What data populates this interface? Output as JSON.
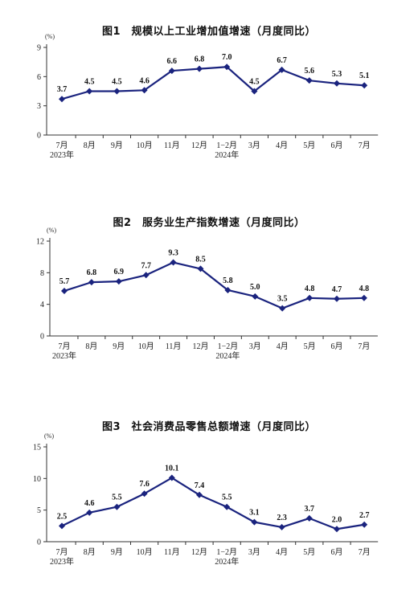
{
  "chart_data": [
    {
      "type": "line",
      "title": "图1　规模以上工业增加值增速（月度同比）",
      "unit": "(%)",
      "categories": [
        "7月",
        "8月",
        "9月",
        "10月",
        "11月",
        "12月",
        "1−2月",
        "3月",
        "4月",
        "5月",
        "6月",
        "7月"
      ],
      "year_labels": [
        "2023年",
        "",
        "",
        "",
        "",
        "",
        "2024年",
        "",
        "",
        "",
        "",
        ""
      ],
      "series": [
        {
          "values": [
            3.7,
            4.5,
            4.5,
            4.6,
            6.6,
            6.8,
            7.0,
            4.5,
            6.7,
            5.6,
            5.3,
            5.1
          ]
        }
      ],
      "value_labels": [
        "3.7",
        "4.5",
        "4.5",
        "4.6",
        "6.6",
        "6.8",
        "7.0",
        "4.5",
        "6.7",
        "5.6",
        "5.3",
        "5.1"
      ],
      "ylim": [
        0,
        9
      ],
      "yticks": [
        "0",
        "3",
        "6",
        "9"
      ],
      "grid": false,
      "line_color": "#1a237e"
    },
    {
      "type": "line",
      "title": "图2　服务业生产指数增速（月度同比）",
      "unit": "(%)",
      "categories": [
        "7月",
        "8月",
        "9月",
        "10月",
        "11月",
        "12月",
        "1−2月",
        "3月",
        "4月",
        "5月",
        "6月",
        "7月"
      ],
      "year_labels": [
        "2023年",
        "",
        "",
        "",
        "",
        "",
        "2024年",
        "",
        "",
        "",
        "",
        ""
      ],
      "series": [
        {
          "values": [
            5.7,
            6.8,
            6.9,
            7.7,
            9.3,
            8.5,
            5.8,
            5.0,
            3.5,
            4.8,
            4.7,
            4.8
          ]
        }
      ],
      "value_labels": [
        "5.7",
        "6.8",
        "6.9",
        "7.7",
        "9.3",
        "8.5",
        "5.8",
        "5.0",
        "3.5",
        "4.8",
        "4.7",
        "4.8"
      ],
      "ylim": [
        0,
        12
      ],
      "yticks": [
        "0",
        "4",
        "8",
        "12"
      ],
      "grid": false,
      "line_color": "#1a237e"
    },
    {
      "type": "line",
      "title": "图3　社会消费品零售总额增速（月度同比）",
      "unit": "(%)",
      "categories": [
        "7月",
        "8月",
        "9月",
        "10月",
        "11月",
        "12月",
        "1−2月",
        "3月",
        "4月",
        "5月",
        "6月",
        "7月"
      ],
      "year_labels": [
        "2023年",
        "",
        "",
        "",
        "",
        "",
        "2024年",
        "",
        "",
        "",
        "",
        ""
      ],
      "series": [
        {
          "values": [
            2.5,
            4.6,
            5.5,
            7.6,
            10.1,
            7.4,
            5.5,
            3.1,
            2.3,
            3.7,
            2.0,
            2.7
          ]
        }
      ],
      "value_labels": [
        "2.5",
        "4.6",
        "5.5",
        "7.6",
        "10.1",
        "7.4",
        "5.5",
        "3.1",
        "2.3",
        "3.7",
        "2.0",
        "2.7"
      ],
      "ylim": [
        0,
        15
      ],
      "yticks": [
        "0",
        "5",
        "10",
        "15"
      ],
      "grid": false,
      "line_color": "#1a237e"
    }
  ]
}
